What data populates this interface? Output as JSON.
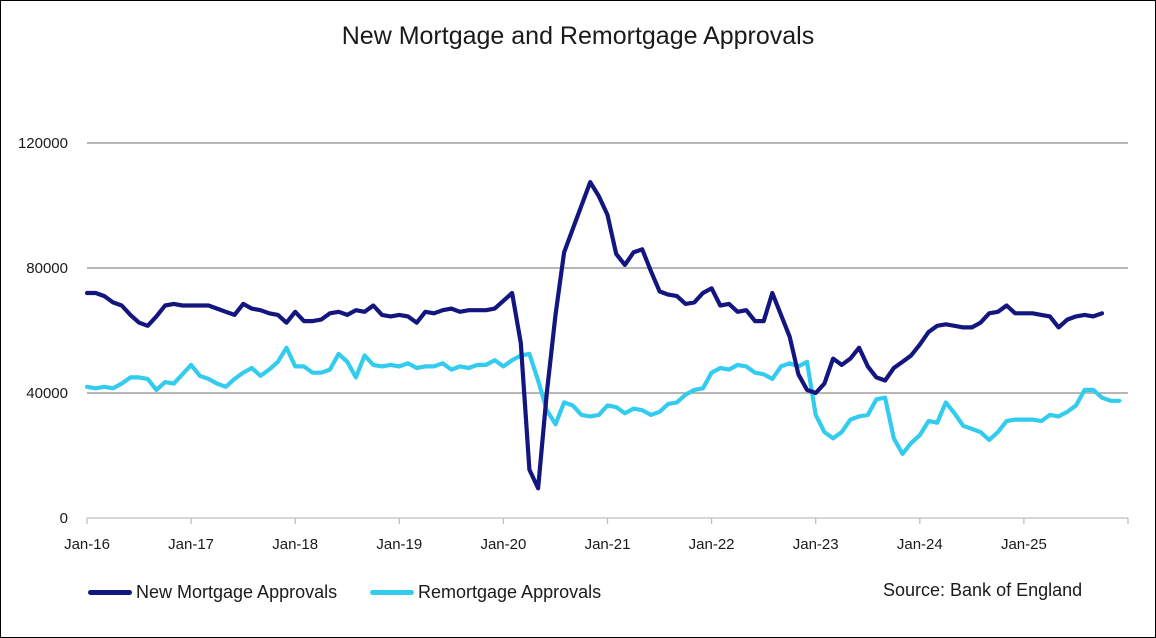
{
  "chart_data": {
    "type": "line",
    "title": "New Mortgage and Remortgage Approvals",
    "xlabel": "",
    "ylabel": "",
    "ylim": [
      0,
      120000
    ],
    "yticks": [
      0,
      40000,
      80000,
      120000
    ],
    "x_ticks": [
      "Jan-16",
      "Jan-17",
      "Jan-18",
      "Jan-19",
      "Jan-20",
      "Jan-21",
      "Jan-22",
      "Jan-23",
      "Jan-24",
      "Jan-25"
    ],
    "grid": true,
    "legend": "bottom-left",
    "x_start": "Jan-16",
    "x_unit": "month",
    "series": [
      {
        "name": "New Mortgage Approvals",
        "color": "#141680",
        "values": [
          72000,
          72000,
          71000,
          69000,
          68000,
          65000,
          62500,
          61500,
          64500,
          68000,
          68500,
          68000,
          68000,
          68000,
          68000,
          67000,
          66000,
          65000,
          68500,
          67000,
          66500,
          65500,
          65000,
          62500,
          66000,
          63000,
          63000,
          63500,
          65500,
          66000,
          65000,
          66500,
          66000,
          68000,
          65000,
          64500,
          65000,
          64500,
          62500,
          66000,
          65500,
          66500,
          67000,
          66000,
          66500,
          66500,
          66500,
          67000,
          69500,
          72000,
          56000,
          15500,
          9500,
          40000,
          65000,
          85000,
          92500,
          100000,
          107500,
          103000,
          97000,
          84500,
          81000,
          85000,
          86000,
          79000,
          72500,
          71500,
          71000,
          68500,
          69000,
          72000,
          73500,
          68000,
          68500,
          66000,
          66500,
          63000,
          63000,
          72000,
          65000,
          58000,
          46000,
          41000,
          40000,
          43000,
          51000,
          49000,
          51000,
          54500,
          48500,
          45000,
          44000,
          48000,
          50000,
          52000,
          55500,
          59500,
          61500,
          62000,
          61500,
          61000,
          61000,
          62500,
          65500,
          66000,
          68000,
          65500,
          65500,
          65500,
          65000,
          64500,
          61000,
          63500,
          64500,
          65000,
          64500,
          65500
        ]
      },
      {
        "name": "Remortgage Approvals",
        "color": "#33ccee",
        "values": [
          42000,
          41500,
          42000,
          41500,
          43000,
          45000,
          45000,
          44500,
          41000,
          43500,
          43000,
          46000,
          49000,
          45500,
          44500,
          43000,
          42000,
          44500,
          46500,
          48000,
          45500,
          47500,
          50000,
          54500,
          48500,
          48500,
          46500,
          46500,
          47500,
          52500,
          50000,
          45000,
          52000,
          49000,
          48500,
          49000,
          48500,
          49500,
          48000,
          48500,
          48500,
          49500,
          47500,
          48500,
          48000,
          49000,
          49000,
          50500,
          48500,
          50500,
          52000,
          52500,
          44000,
          34500,
          30000,
          37000,
          36000,
          33000,
          32500,
          33000,
          36000,
          35500,
          33500,
          35000,
          34500,
          33000,
          34000,
          36500,
          37000,
          39500,
          41000,
          41500,
          46500,
          48000,
          47500,
          49000,
          48500,
          46500,
          46000,
          44500,
          48500,
          49500,
          48500,
          50000,
          33000,
          27500,
          25500,
          27500,
          31500,
          32500,
          33000,
          38000,
          38500,
          25500,
          20500,
          24000,
          26500,
          31000,
          30500,
          37000,
          33500,
          29500,
          28500,
          27500,
          25000,
          27500,
          31000,
          31500,
          31500,
          31500,
          31000,
          33000,
          32500,
          34000,
          36000,
          41000,
          41000,
          38500,
          37500,
          37500
        ]
      }
    ]
  },
  "legend": {
    "items": [
      {
        "label": "New Mortgage Approvals",
        "color": "#141680"
      },
      {
        "label": "Remortgage Approvals",
        "color": "#33ccee"
      }
    ]
  },
  "source": "Source: Bank of England"
}
